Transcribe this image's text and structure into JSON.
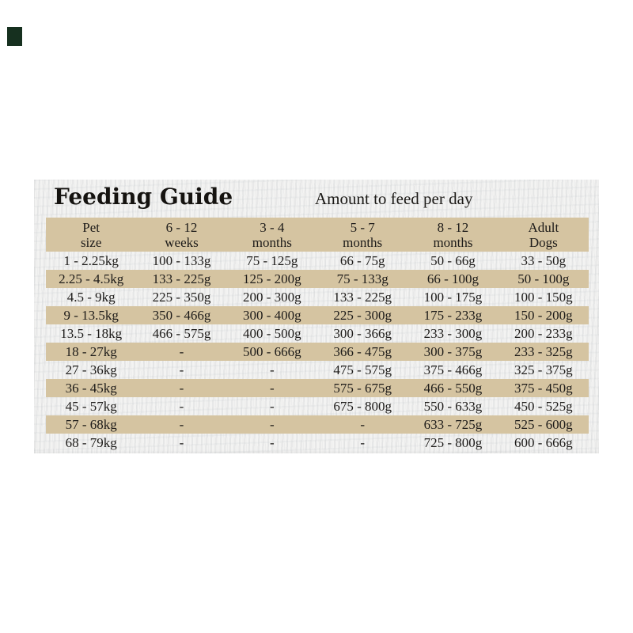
{
  "corner_mark": {
    "color": "#16301f"
  },
  "header": {
    "title": "Feeding Guide",
    "subtitle": "Amount to feed per day"
  },
  "table": {
    "columns": [
      [
        "Pet",
        "size"
      ],
      [
        "6 - 12",
        "weeks"
      ],
      [
        "3 - 4",
        "months"
      ],
      [
        "5 - 7",
        "months"
      ],
      [
        "8 - 12",
        "months"
      ],
      [
        "Adult",
        "Dogs"
      ]
    ],
    "rows": [
      [
        "1 - 2.25kg",
        "100 - 133g",
        "75 - 125g",
        "66 - 75g",
        "50 - 66g",
        "33 - 50g"
      ],
      [
        "2.25 - 4.5kg",
        "133 - 225g",
        "125 - 200g",
        "75 - 133g",
        "66 - 100g",
        "50 - 100g"
      ],
      [
        "4.5 - 9kg",
        "225 - 350g",
        "200 - 300g",
        "133 - 225g",
        "100 - 175g",
        "100 - 150g"
      ],
      [
        "9 - 13.5kg",
        "350 - 466g",
        "300 - 400g",
        "225 - 300g",
        "175 - 233g",
        "150 - 200g"
      ],
      [
        "13.5 - 18kg",
        "466 - 575g",
        "400 - 500g",
        "300 - 366g",
        "233 - 300g",
        "200 - 233g"
      ],
      [
        "18 - 27kg",
        "-",
        "500 - 666g",
        "366 - 475g",
        "300 - 375g",
        "233 - 325g"
      ],
      [
        "27 - 36kg",
        "-",
        "-",
        "475 - 575g",
        "375 - 466g",
        "325 - 375g"
      ],
      [
        "36 - 45kg",
        "-",
        "-",
        "575 - 675g",
        "466 - 550g",
        "375 - 450g"
      ],
      [
        "45 - 57kg",
        "-",
        "-",
        "675 - 800g",
        "550 - 633g",
        "450 - 525g"
      ],
      [
        "57 - 68kg",
        "-",
        "-",
        "-",
        "633 - 725g",
        "525 - 600g"
      ],
      [
        "68 - 79kg",
        "-",
        "-",
        "-",
        "725 - 800g",
        "600 - 666g"
      ]
    ]
  },
  "colors": {
    "band": "#d5c4a1",
    "paper": "#f3f3f2",
    "text": "#1d1b19",
    "page": "#ffffff"
  }
}
